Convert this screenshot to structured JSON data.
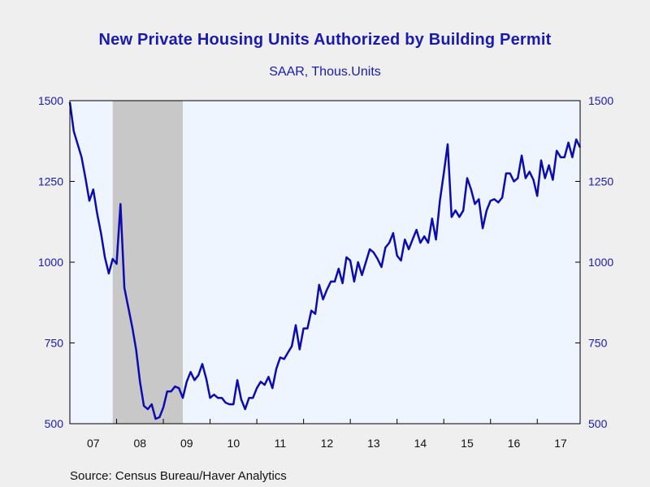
{
  "chart_data": {
    "type": "line",
    "title": "New Private Housing Units Authorized by Building Permit",
    "subtitle": "SAAR, Thous.Units",
    "source": "Source:  Census Bureau/Haver Analytics",
    "ylim": [
      500,
      1500
    ],
    "yticks": [
      500,
      750,
      1000,
      1250,
      1500
    ],
    "xlim": [
      2007.0,
      2017.917
    ],
    "xtick_labels": [
      "07",
      "08",
      "09",
      "10",
      "11",
      "12",
      "13",
      "14",
      "15",
      "16",
      "17"
    ],
    "recession": {
      "start": "2007-12",
      "end": "2009-06"
    },
    "colors": {
      "line": "#0b0bb0",
      "recession": "#c8c8c8",
      "plot_bg": "#eef5ff",
      "text": "#1a1ab0"
    },
    "start_month": "2007-01",
    "values": [
      1495,
      1405,
      1365,
      1325,
      1260,
      1190,
      1225,
      1150,
      1090,
      1015,
      965,
      1010,
      995,
      1180,
      920,
      860,
      800,
      730,
      630,
      555,
      545,
      560,
      515,
      520,
      550,
      600,
      600,
      615,
      610,
      580,
      630,
      660,
      635,
      650,
      685,
      640,
      580,
      590,
      580,
      580,
      565,
      560,
      560,
      635,
      575,
      545,
      580,
      580,
      610,
      630,
      620,
      645,
      610,
      670,
      705,
      700,
      720,
      740,
      805,
      730,
      795,
      795,
      850,
      840,
      930,
      885,
      915,
      940,
      940,
      980,
      935,
      1015,
      1005,
      940,
      1000,
      960,
      1000,
      1040,
      1030,
      1010,
      985,
      1045,
      1060,
      1090,
      1020,
      1005,
      1070,
      1040,
      1070,
      1100,
      1060,
      1080,
      1060,
      1135,
      1070,
      1190,
      1275,
      1365,
      1140,
      1160,
      1140,
      1160,
      1260,
      1225,
      1180,
      1195,
      1105,
      1160,
      1190,
      1195,
      1185,
      1200,
      1275,
      1275,
      1250,
      1260,
      1330,
      1260,
      1280,
      1255,
      1205,
      1315,
      1260,
      1300,
      1255,
      1345,
      1325,
      1325,
      1370,
      1325,
      1380,
      1355
    ]
  }
}
